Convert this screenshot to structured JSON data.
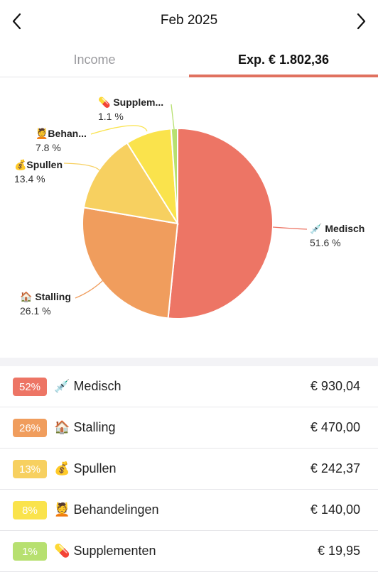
{
  "header": {
    "title": "Feb 2025",
    "prev_icon": "chevron-left-icon",
    "next_icon": "chevron-right-icon"
  },
  "tabs": {
    "income_label": "Income",
    "expense_label": "Exp. € 1.802,36",
    "active": "expense"
  },
  "chart_data": {
    "type": "pie",
    "slices": [
      {
        "label": "💉 Medisch",
        "percent_label": "51.6 %",
        "value": 51.6,
        "color": "#ed7565"
      },
      {
        "label": "🏠 Stalling",
        "percent_label": "26.1 %",
        "value": 26.1,
        "color": "#f09d5d"
      },
      {
        "label": "💰Spullen",
        "percent_label": "13.4 %",
        "value": 13.4,
        "color": "#f7d060"
      },
      {
        "label": "💆Behan...",
        "percent_label": "7.8 %",
        "value": 7.8,
        "color": "#fae34c"
      },
      {
        "label": "💊 Supplem...",
        "percent_label": "1.1 %",
        "value": 1.1,
        "color": "#b7e070"
      }
    ]
  },
  "categories": [
    {
      "badge": "52%",
      "emoji": "💉",
      "name": "Medisch",
      "amount": "€ 930,04",
      "color": "#ed7565"
    },
    {
      "badge": "26%",
      "emoji": "🏠",
      "name": "Stalling",
      "amount": "€ 470,00",
      "color": "#f09d5d"
    },
    {
      "badge": "13%",
      "emoji": "💰",
      "name": "Spullen",
      "amount": "€ 242,37",
      "color": "#f7d060"
    },
    {
      "badge": "8%",
      "emoji": "💆",
      "name": "Behandelingen",
      "amount": "€ 140,00",
      "color": "#fae34c"
    },
    {
      "badge": "1%",
      "emoji": "💊",
      "name": "Supplementen",
      "amount": "€ 19,95",
      "color": "#b7e070"
    }
  ]
}
